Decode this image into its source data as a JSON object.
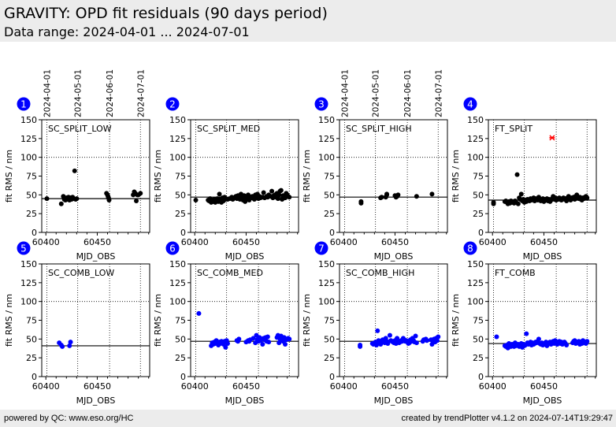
{
  "header": {
    "title": "GRAVITY: OPD fit residuals (90 days period)",
    "subtitle": "Data range: 2024-04-01 ... 2024-07-01"
  },
  "footer": {
    "left": "powered by QC: www.eso.org/HC",
    "right": "created by trendPlotter v4.1.2 on 2024-07-14T19:29:47"
  },
  "colors": {
    "split_marker": "#000000",
    "comb_marker": "#0000ff",
    "outlier_marker": "#ff0000",
    "badge": "#0000ff"
  },
  "chart_data": {
    "type": "scatter",
    "shared": {
      "xlabel": "MJD_OBS",
      "ylabel": "fit RMS / nm",
      "xlim": [
        60396,
        60501
      ],
      "ylim": [
        0,
        150
      ],
      "xticks": [
        60400,
        60450
      ],
      "yticks": [
        0,
        25,
        50,
        75,
        100,
        125,
        150
      ],
      "date_lines": [
        {
          "label": "2024-04-01",
          "mjd": 60401
        },
        {
          "label": "2024-05-01",
          "mjd": 60431
        },
        {
          "label": "2024-06-01",
          "mjd": 60462
        },
        {
          "label": "2024-07-01",
          "mjd": 60492
        }
      ],
      "hgrid": 100
    },
    "panels": [
      {
        "id": 1,
        "label": "SC_SPLIT_LOW",
        "color": "split",
        "ref": 45,
        "x": [
          60401,
          60415,
          60417,
          60418,
          60419,
          60420,
          60421,
          60422,
          60423,
          60424,
          60425,
          60426,
          60427,
          60428,
          60429,
          60430,
          60459,
          60460,
          60460.5,
          60461,
          60461.5,
          60485,
          60486,
          60487,
          60488,
          60489,
          60490,
          60492
        ],
        "y": [
          45,
          38,
          48,
          44,
          43,
          46,
          44,
          47,
          43,
          46,
          44,
          47,
          45,
          82,
          44,
          45,
          52,
          50,
          48,
          46,
          43,
          50,
          54,
          52,
          42,
          50,
          50,
          52
        ],
        "outliers_x": [],
        "outliers_y": []
      },
      {
        "id": 2,
        "label": "SC_SPLIT_MED",
        "color": "split",
        "ref": 47,
        "x": [
          60401,
          60413,
          60414,
          60415,
          60416,
          60417,
          60418,
          60419,
          60420,
          60421,
          60422,
          60423,
          60424,
          60425,
          60426,
          60427,
          60428,
          60429,
          60430,
          60432,
          60434,
          60436,
          60437,
          60438,
          60440,
          60441,
          60442,
          60443,
          60444,
          60445,
          60446,
          60447,
          60448,
          60449,
          60450,
          60451,
          60452,
          60453,
          60454,
          60455,
          60456,
          60458,
          60459,
          60460,
          60461,
          60462,
          60463,
          60464,
          60466,
          60467,
          60468,
          60470,
          60471,
          60472,
          60474,
          60475,
          60476,
          60477,
          60478,
          60479,
          60480,
          60481,
          60482,
          60483,
          60484,
          60485,
          60486,
          60487,
          60488,
          60489,
          60490,
          60491,
          60492
        ],
        "y": [
          43,
          43,
          42,
          45,
          40,
          43,
          41,
          44,
          40,
          42,
          45,
          41,
          51,
          44,
          40,
          46,
          42,
          47,
          44,
          44,
          45,
          47,
          44,
          46,
          48,
          45,
          49,
          46,
          44,
          51,
          47,
          43,
          49,
          41,
          46,
          44,
          50,
          43,
          47,
          46,
          48,
          44,
          50,
          47,
          51,
          45,
          48,
          46,
          47,
          53,
          46,
          48,
          47,
          50,
          48,
          55,
          46,
          49,
          50,
          47,
          52,
          45,
          50,
          55,
          56,
          44,
          49,
          47,
          46,
          52,
          50,
          48,
          47
        ],
        "outliers_x": [],
        "outliers_y": []
      },
      {
        "id": 3,
        "label": "SC_SPLIT_HIGH",
        "color": "split",
        "ref": 47,
        "x": [
          60417,
          60417,
          60436,
          60437,
          60441,
          60442,
          60442,
          60450,
          60451,
          60452,
          60453,
          60471,
          60486
        ],
        "y": [
          41,
          39,
          46,
          47,
          47,
          50,
          51,
          49,
          47,
          48,
          50,
          48,
          51
        ],
        "outliers_x": [],
        "outliers_y": []
      },
      {
        "id": 4,
        "label": "FT_SPLIT",
        "color": "split",
        "ref": 43,
        "x": [
          60401,
          60401,
          60412,
          60413,
          60414,
          60415,
          60416,
          60417,
          60418,
          60419,
          60420,
          60421,
          60422,
          60423,
          60424,
          60425,
          60426,
          60427,
          60428,
          60429,
          60430,
          60431,
          60432,
          60433,
          60434,
          60435,
          60436,
          60437,
          60438,
          60439,
          60440,
          60441,
          60442,
          60443,
          60444,
          60445,
          60446,
          60447,
          60448,
          60449,
          60450,
          60451,
          60452,
          60453,
          60454,
          60455,
          60456,
          60457,
          60458,
          60459,
          60460,
          60461,
          60462,
          60463,
          60464,
          60465,
          60466,
          60467,
          60468,
          60469,
          60470,
          60471,
          60472,
          60473,
          60474,
          60475,
          60476,
          60477,
          60478,
          60479,
          60480,
          60481,
          60482,
          60483,
          60484,
          60485,
          60486,
          60487,
          60488,
          60489,
          60490,
          60491,
          60492
        ],
        "y": [
          40,
          38,
          41,
          42,
          40,
          38,
          41,
          39,
          42,
          40,
          41,
          39,
          42,
          40,
          77,
          38,
          46,
          44,
          51,
          42,
          44,
          40,
          43,
          41,
          44,
          43,
          42,
          45,
          43,
          44,
          46,
          42,
          45,
          44,
          43,
          47,
          44,
          42,
          43,
          45,
          41,
          44,
          43,
          45,
          42,
          44,
          41,
          43,
          45,
          48,
          44,
          46,
          43,
          45,
          44,
          46,
          44,
          43,
          45,
          46,
          44,
          45,
          42,
          46,
          48,
          44,
          43,
          46,
          45,
          47,
          44,
          48,
          50,
          46,
          45,
          47,
          44,
          43,
          46,
          45,
          47,
          48,
          46
        ],
        "outliers_x": [
          60458
        ],
        "outliers_y": [
          126
        ]
      },
      {
        "id": 5,
        "label": "SC_COMB_LOW",
        "color": "comb",
        "ref": 41,
        "x": [
          60413,
          60415,
          60416,
          60423,
          60424
        ],
        "y": [
          45,
          42,
          40,
          41,
          46
        ],
        "outliers_x": [],
        "outliers_y": []
      },
      {
        "id": 6,
        "label": "SC_COMB_MED",
        "color": "comb",
        "ref": 47,
        "x": [
          60404,
          60416,
          60417,
          60418,
          60419,
          60420,
          60421,
          60422,
          60423,
          60424,
          60425,
          60426,
          60427,
          60428,
          60429,
          60430,
          60431,
          60432,
          60441,
          60442,
          60443,
          60450,
          60452,
          60453,
          60454,
          60457,
          60459,
          60460,
          60461,
          60462,
          60463,
          60464,
          60465,
          60466,
          60467,
          60468,
          60469,
          60470,
          60471,
          60472,
          60480,
          60481,
          60482,
          60483,
          60484,
          60485,
          60486,
          60487,
          60488,
          60489,
          60490,
          60491,
          60492
        ],
        "y": [
          84,
          41,
          45,
          43,
          46,
          44,
          48,
          45,
          42,
          46,
          44,
          47,
          45,
          43,
          47,
          39,
          48,
          44,
          48,
          47,
          50,
          46,
          48,
          47,
          49,
          51,
          45,
          55,
          49,
          47,
          52,
          48,
          50,
          43,
          51,
          49,
          52,
          47,
          53,
          46,
          52,
          55,
          45,
          50,
          54,
          48,
          47,
          52,
          43,
          49,
          50,
          51,
          50
        ],
        "outliers_x": [],
        "outliers_y": []
      },
      {
        "id": 7,
        "label": "SC_COMB_HIGH",
        "color": "comb",
        "ref": 47,
        "x": [
          60416,
          60416,
          60428,
          60429,
          60430,
          60431,
          60432,
          60433,
          60434,
          60435,
          60436,
          60437,
          60438,
          60439,
          60440,
          60441,
          60442,
          60443,
          60445,
          60446,
          60447,
          60448,
          60449,
          60450,
          60451,
          60452,
          60453,
          60454,
          60455,
          60456,
          60457,
          60458,
          60459,
          60460,
          60461,
          60462,
          60463,
          60464,
          60465,
          60466,
          60467,
          60468,
          60469,
          60470,
          60471,
          60477,
          60478,
          60480,
          60481,
          60485,
          60486,
          60487,
          60488,
          60489,
          60490,
          60491,
          60492
        ],
        "y": [
          42,
          40,
          44,
          43,
          44,
          46,
          42,
          61,
          48,
          45,
          43,
          47,
          49,
          46,
          45,
          51,
          47,
          44,
          55,
          48,
          47,
          46,
          45,
          48,
          44,
          51,
          47,
          45,
          46,
          48,
          47,
          51,
          49,
          47,
          48,
          46,
          44,
          45,
          49,
          47,
          51,
          48,
          46,
          54,
          45,
          47,
          49,
          50,
          48,
          49,
          43,
          47,
          50,
          46,
          51,
          48,
          53
        ],
        "outliers_x": [],
        "outliers_y": []
      },
      {
        "id": 8,
        "label": "FT_COMB",
        "color": "comb",
        "ref": 44,
        "x": [
          60404,
          60412,
          60413,
          60414,
          60415,
          60416,
          60417,
          60418,
          60419,
          60420,
          60421,
          60422,
          60423,
          60424,
          60425,
          60426,
          60427,
          60428,
          60429,
          60430,
          60431,
          60432,
          60433,
          60434,
          60435,
          60436,
          60437,
          60438,
          60439,
          60440,
          60441,
          60442,
          60443,
          60444,
          60445,
          60446,
          60447,
          60448,
          60449,
          60450,
          60451,
          60452,
          60453,
          60454,
          60455,
          60456,
          60457,
          60458,
          60459,
          60460,
          60461,
          60462,
          60463,
          60464,
          60465,
          60466,
          60467,
          60468,
          60469,
          60470,
          60471,
          60472,
          60478,
          60479,
          60480,
          60481,
          60482,
          60483,
          60484,
          60485,
          60486,
          60487,
          60488,
          60489,
          60490,
          60491,
          60492
        ],
        "y": [
          53,
          41,
          40,
          42,
          38,
          44,
          41,
          40,
          43,
          42,
          40,
          45,
          41,
          42,
          43,
          40,
          41,
          44,
          39,
          43,
          41,
          42,
          57,
          45,
          43,
          44,
          46,
          42,
          45,
          43,
          44,
          46,
          45,
          47,
          50,
          44,
          43,
          45,
          42,
          44,
          43,
          46,
          41,
          45,
          44,
          46,
          43,
          45,
          47,
          44,
          48,
          46,
          43,
          45,
          47,
          44,
          46,
          43,
          45,
          46,
          44,
          42,
          45,
          47,
          48,
          44,
          46,
          45,
          47,
          43,
          46,
          44,
          48,
          45,
          46,
          44,
          47
        ],
        "outliers_x": [],
        "outliers_y": []
      }
    ]
  }
}
